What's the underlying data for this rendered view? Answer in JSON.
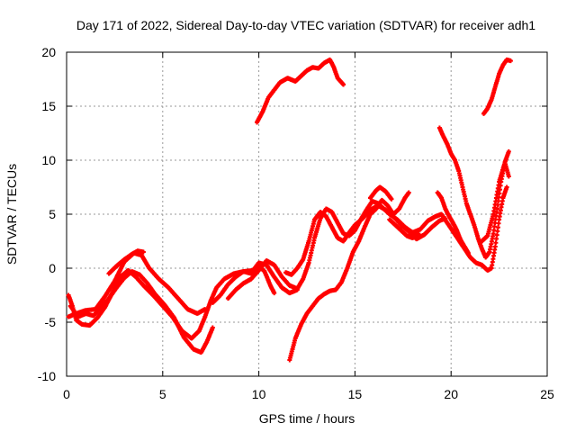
{
  "chart_data": {
    "type": "scatter",
    "title": "Day 171 of 2022, Sidereal Day-to-day VTEC variation (SDTVAR) for receiver adh1",
    "xlabel": "GPS time / hours",
    "ylabel": "SDTVAR / TECUs",
    "xlim": [
      0,
      25
    ],
    "ylim": [
      -10,
      20
    ],
    "xticks": [
      0,
      5,
      10,
      15,
      20,
      25
    ],
    "yticks": [
      -10,
      -5,
      0,
      5,
      10,
      15,
      20
    ],
    "grid": true,
    "marker": "+",
    "color": "#ff0000",
    "series": [
      {
        "points": [
          [
            0.1,
            -2.5
          ],
          [
            0.3,
            -3.5
          ],
          [
            0.5,
            -4.8
          ],
          [
            0.8,
            -5.2
          ],
          [
            1.2,
            -5.3
          ],
          [
            1.6,
            -4.6
          ],
          [
            2.0,
            -3.6
          ],
          [
            2.4,
            -2.2
          ],
          [
            2.8,
            -0.8
          ],
          [
            3.2,
            -0.2
          ],
          [
            3.6,
            -0.8
          ],
          [
            4.0,
            -1.6
          ],
          [
            4.5,
            -2.5
          ],
          [
            5.0,
            -3.5
          ],
          [
            5.5,
            -4.5
          ],
          [
            6.0,
            -5.8
          ],
          [
            6.5,
            -6.5
          ],
          [
            6.9,
            -5.8
          ],
          [
            7.2,
            -4.5
          ],
          [
            7.5,
            -3.0
          ],
          [
            7.8,
            -1.8
          ],
          [
            8.2,
            -1.0
          ],
          [
            8.7,
            -0.5
          ],
          [
            9.2,
            -0.3
          ],
          [
            9.7,
            -0.2
          ],
          [
            10.0,
            0.5
          ],
          [
            10.4,
            0.3
          ],
          [
            10.8,
            -0.8
          ],
          [
            11.2,
            -1.8
          ],
          [
            11.6,
            -2.3
          ],
          [
            12.0,
            -2.0
          ]
        ]
      },
      {
        "points": [
          [
            0.2,
            -3.5
          ],
          [
            0.6,
            -4.5
          ],
          [
            1.0,
            -4.2
          ],
          [
            1.4,
            -4.4
          ],
          [
            1.8,
            -3.6
          ],
          [
            2.2,
            -2.8
          ],
          [
            2.6,
            -1.8
          ],
          [
            3.0,
            -0.9
          ],
          [
            3.4,
            -0.3
          ],
          [
            3.8,
            -0.6
          ],
          [
            4.2,
            -1.4
          ],
          [
            4.6,
            -2.4
          ],
          [
            5.1,
            -3.4
          ],
          [
            5.6,
            -4.6
          ],
          [
            6.1,
            -6.4
          ],
          [
            6.6,
            -7.5
          ],
          [
            7.0,
            -7.8
          ],
          [
            7.3,
            -6.8
          ],
          [
            7.6,
            -5.5
          ]
        ]
      },
      {
        "points": [
          [
            0.1,
            -4.5
          ],
          [
            0.5,
            -4.2
          ],
          [
            1.0,
            -3.9
          ],
          [
            1.5,
            -3.8
          ],
          [
            2.0,
            -2.6
          ],
          [
            2.5,
            -1.2
          ],
          [
            3.0,
            0.6
          ],
          [
            3.5,
            1.4
          ],
          [
            3.9,
            1.2
          ],
          [
            4.3,
            0.0
          ],
          [
            4.8,
            -1.0
          ],
          [
            5.3,
            -1.8
          ],
          [
            5.8,
            -2.8
          ],
          [
            6.3,
            -3.8
          ],
          [
            6.8,
            -4.2
          ],
          [
            7.2,
            -3.8
          ]
        ]
      },
      {
        "points": [
          [
            2.2,
            -0.5
          ],
          [
            2.6,
            0.2
          ],
          [
            3.0,
            0.8
          ],
          [
            3.4,
            1.3
          ],
          [
            3.7,
            1.6
          ],
          [
            4.0,
            1.5
          ]
        ]
      },
      {
        "points": [
          [
            7.6,
            -3.2
          ],
          [
            8.0,
            -2.5
          ],
          [
            8.4,
            -1.5
          ],
          [
            8.8,
            -0.8
          ],
          [
            9.2,
            -0.3
          ],
          [
            9.6,
            -0.5
          ],
          [
            10.0,
            0.2
          ],
          [
            10.3,
            -0.3
          ],
          [
            10.6,
            -1.6
          ],
          [
            10.8,
            -2.3
          ]
        ]
      },
      {
        "points": [
          [
            8.4,
            -2.8
          ],
          [
            8.8,
            -2.0
          ],
          [
            9.2,
            -1.4
          ],
          [
            9.6,
            -1.0
          ],
          [
            10.0,
            -0.2
          ],
          [
            10.4,
            0.7
          ],
          [
            10.8,
            0.3
          ],
          [
            11.2,
            -0.8
          ],
          [
            11.6,
            -1.6
          ],
          [
            12.0,
            -1.9
          ],
          [
            12.3,
            -1.0
          ],
          [
            12.6,
            0.5
          ],
          [
            12.9,
            2.8
          ],
          [
            13.2,
            4.6
          ],
          [
            13.5,
            5.5
          ],
          [
            13.8,
            5.2
          ],
          [
            14.1,
            4.2
          ],
          [
            14.4,
            3.2
          ],
          [
            14.7,
            3.0
          ],
          [
            15.0,
            3.5
          ],
          [
            15.3,
            4.5
          ],
          [
            15.6,
            5.4
          ],
          [
            15.9,
            6.2
          ],
          [
            16.2,
            6.0
          ],
          [
            16.5,
            5.5
          ],
          [
            16.8,
            5.0
          ],
          [
            17.2,
            4.5
          ],
          [
            17.6,
            3.8
          ],
          [
            18.0,
            3.3
          ],
          [
            18.4,
            3.6
          ],
          [
            18.8,
            4.4
          ],
          [
            19.2,
            4.8
          ],
          [
            19.5,
            5.0
          ],
          [
            19.8,
            4.2
          ],
          [
            20.1,
            3.4
          ],
          [
            20.4,
            2.6
          ],
          [
            20.7,
            1.8
          ],
          [
            21.0,
            1.0
          ],
          [
            21.3,
            0.5
          ],
          [
            21.6,
            0.3
          ],
          [
            21.9,
            -0.2
          ],
          [
            22.1,
            0.0
          ],
          [
            22.3,
            2.0
          ],
          [
            22.5,
            4.5
          ],
          [
            22.7,
            6.5
          ],
          [
            22.9,
            7.5
          ]
        ]
      },
      {
        "points": [
          [
            11.4,
            -0.4
          ],
          [
            11.7,
            -0.6
          ],
          [
            12.0,
            0.0
          ],
          [
            12.3,
            0.8
          ],
          [
            12.6,
            2.5
          ],
          [
            12.9,
            4.5
          ],
          [
            13.2,
            5.2
          ],
          [
            13.5,
            4.8
          ],
          [
            13.8,
            3.8
          ],
          [
            14.1,
            2.8
          ],
          [
            14.4,
            2.5
          ],
          [
            14.7,
            3.3
          ],
          [
            15.0,
            4.0
          ],
          [
            15.4,
            4.6
          ],
          [
            15.8,
            5.4
          ],
          [
            16.2,
            5.8
          ],
          [
            16.6,
            5.4
          ],
          [
            17.0,
            4.8
          ],
          [
            17.4,
            4.0
          ],
          [
            17.8,
            3.4
          ],
          [
            18.2,
            2.7
          ],
          [
            18.6,
            3.1
          ],
          [
            19.0,
            3.8
          ],
          [
            19.4,
            4.4
          ],
          [
            19.7,
            4.6
          ]
        ]
      },
      {
        "points": [
          [
            11.6,
            -8.5
          ],
          [
            11.9,
            -6.5
          ],
          [
            12.2,
            -5.2
          ],
          [
            12.5,
            -4.2
          ],
          [
            12.8,
            -3.5
          ],
          [
            13.1,
            -2.8
          ],
          [
            13.4,
            -2.4
          ],
          [
            13.7,
            -2.1
          ],
          [
            14.0,
            -2.0
          ],
          [
            14.3,
            -1.3
          ],
          [
            14.6,
            0.0
          ],
          [
            14.9,
            1.5
          ],
          [
            15.2,
            2.5
          ],
          [
            15.5,
            3.8
          ],
          [
            15.8,
            5.0
          ],
          [
            16.1,
            5.5
          ],
          [
            16.4,
            6.3
          ],
          [
            16.7,
            5.8
          ],
          [
            17.0,
            5.0
          ],
          [
            17.3,
            5.5
          ],
          [
            17.6,
            6.5
          ],
          [
            17.8,
            7.0
          ]
        ]
      },
      {
        "points": [
          [
            15.8,
            6.5
          ],
          [
            16.1,
            7.2
          ],
          [
            16.3,
            7.5
          ],
          [
            16.6,
            7.1
          ],
          [
            16.9,
            6.4
          ]
        ]
      },
      {
        "points": [
          [
            16.8,
            4.5
          ],
          [
            17.1,
            4.0
          ],
          [
            17.4,
            3.5
          ],
          [
            17.7,
            3.0
          ],
          [
            18.0,
            2.8
          ],
          [
            18.3,
            3.2
          ]
        ]
      },
      {
        "points": [
          [
            19.3,
            7.0
          ],
          [
            19.5,
            6.5
          ],
          [
            19.7,
            5.5
          ],
          [
            19.9,
            4.8
          ],
          [
            20.1,
            4.2
          ],
          [
            20.3,
            3.5
          ],
          [
            20.5,
            2.6
          ],
          [
            20.7,
            2.0
          ],
          [
            20.9,
            1.4
          ]
        ]
      },
      {
        "points": [
          [
            19.4,
            13.0
          ],
          [
            19.6,
            12.2
          ],
          [
            19.8,
            11.5
          ],
          [
            20.0,
            10.6
          ],
          [
            20.2,
            10.0
          ],
          [
            20.4,
            9.0
          ],
          [
            20.6,
            7.5
          ],
          [
            20.8,
            6.0
          ],
          [
            21.0,
            5.0
          ],
          [
            21.2,
            4.0
          ],
          [
            21.4,
            2.8
          ],
          [
            21.6,
            1.8
          ],
          [
            21.8,
            1.0
          ],
          [
            22.0,
            1.5
          ],
          [
            22.2,
            3.2
          ],
          [
            22.4,
            5.5
          ],
          [
            22.6,
            8.0
          ],
          [
            22.8,
            9.8
          ],
          [
            23.0,
            10.8
          ]
        ]
      },
      {
        "points": [
          [
            21.6,
            2.5
          ],
          [
            21.9,
            3.0
          ],
          [
            22.2,
            5.0
          ],
          [
            22.5,
            8.0
          ],
          [
            22.8,
            9.8
          ],
          [
            23.0,
            8.5
          ]
        ]
      },
      {
        "points": [
          [
            9.9,
            13.5
          ],
          [
            10.2,
            14.5
          ],
          [
            10.5,
            15.8
          ],
          [
            10.8,
            16.5
          ],
          [
            11.1,
            17.2
          ],
          [
            11.5,
            17.6
          ],
          [
            11.9,
            17.3
          ],
          [
            12.2,
            17.8
          ],
          [
            12.5,
            18.3
          ],
          [
            12.8,
            18.6
          ],
          [
            13.1,
            18.5
          ],
          [
            13.4,
            19.0
          ],
          [
            13.7,
            19.3
          ],
          [
            13.9,
            18.6
          ],
          [
            14.1,
            17.6
          ],
          [
            14.4,
            17.0
          ]
        ]
      },
      {
        "points": [
          [
            21.7,
            14.3
          ],
          [
            21.9,
            14.8
          ],
          [
            22.1,
            15.6
          ],
          [
            22.3,
            16.8
          ],
          [
            22.5,
            18.0
          ],
          [
            22.7,
            18.8
          ],
          [
            22.9,
            19.3
          ],
          [
            23.1,
            19.2
          ]
        ]
      }
    ]
  }
}
